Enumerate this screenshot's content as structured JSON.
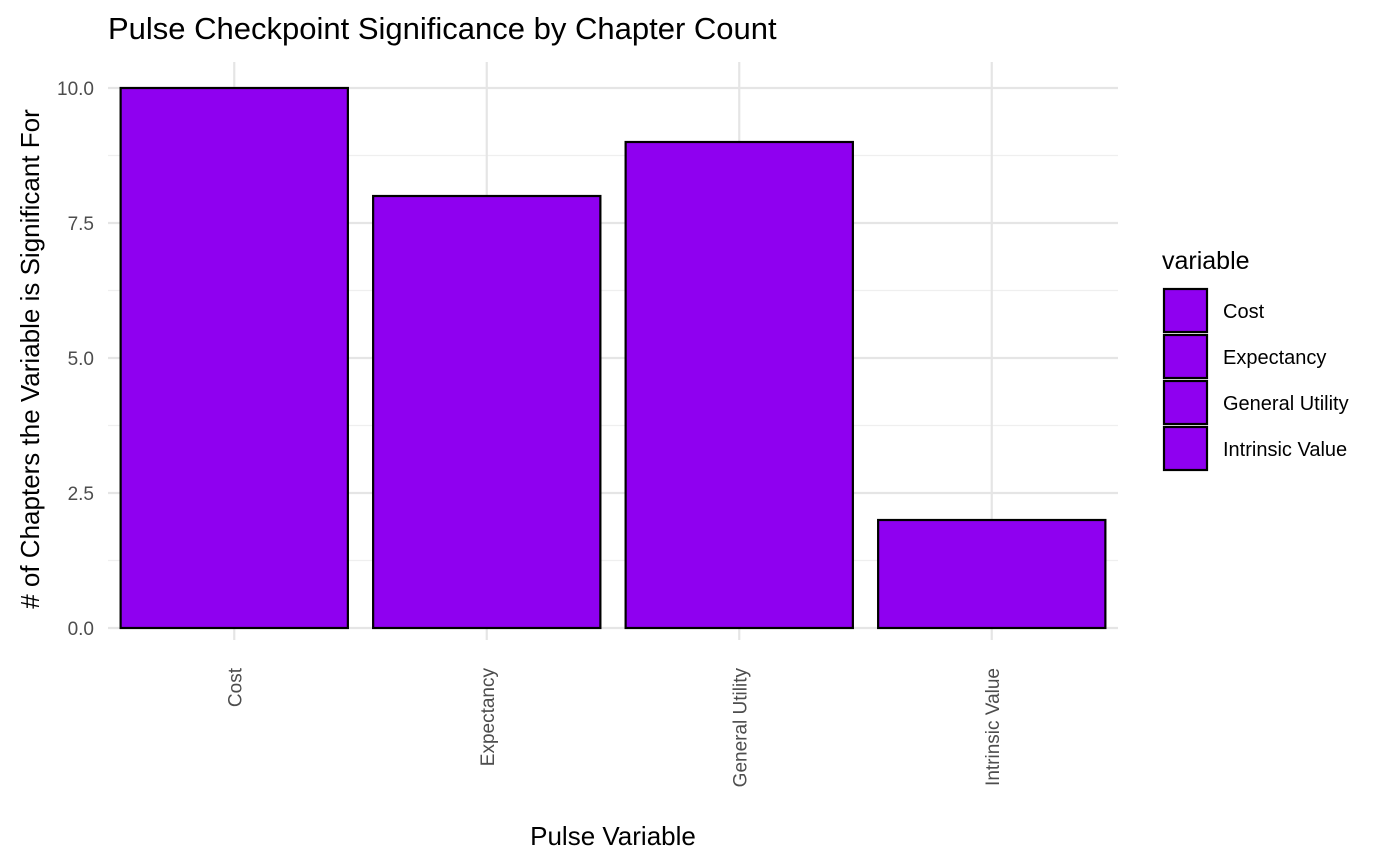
{
  "chart_data": {
    "type": "bar",
    "title": "Pulse Checkpoint Significance by Chapter Count",
    "xlabel": "Pulse Variable",
    "ylabel": "# of Chapters the Variable is Significant For",
    "categories": [
      "Cost",
      "Expectancy",
      "General Utility",
      "Intrinsic Value"
    ],
    "values": [
      10,
      8,
      9,
      2
    ],
    "ylim": [
      0,
      10
    ],
    "yticks": [
      0.0,
      2.5,
      5.0,
      7.5,
      10.0
    ],
    "ytick_labels": [
      "0.0",
      "2.5",
      "5.0",
      "7.5",
      "10.0"
    ],
    "grid": true,
    "bar_color": "#8F00F0",
    "bar_outline_color": "#000000",
    "legend": {
      "title": "variable",
      "position": "right",
      "entries": [
        "Cost",
        "Expectancy",
        "General Utility",
        "Intrinsic Value"
      ]
    }
  }
}
